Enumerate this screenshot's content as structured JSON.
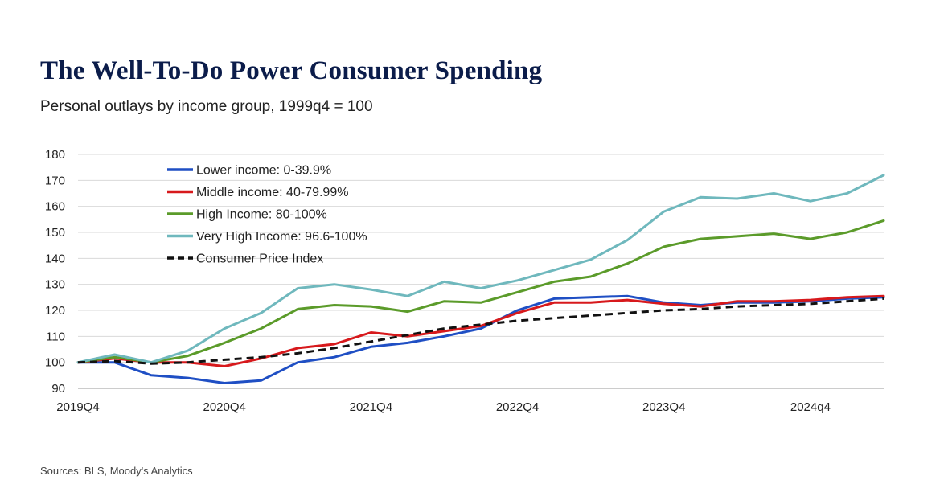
{
  "chart_data": {
    "type": "line",
    "title": "The Well-To-Do Power Consumer Spending",
    "subtitle": "Personal outlays by income group, 1999q4 = 100",
    "x_tick_labels": [
      "2019Q4",
      "2020Q4",
      "2021Q4",
      "2022Q4",
      "2023Q4",
      "2024q4"
    ],
    "x_tick_positions": [
      0,
      4,
      8,
      12,
      16,
      20
    ],
    "x": [
      0,
      1,
      2,
      3,
      4,
      5,
      6,
      7,
      8,
      9,
      10,
      11,
      12,
      13,
      14,
      15,
      16,
      17,
      18,
      19,
      20,
      21,
      22
    ],
    "ylim": [
      90,
      180
    ],
    "yticks": [
      90,
      100,
      110,
      120,
      130,
      140,
      150,
      160,
      170,
      180
    ],
    "grid": "horizontal",
    "legend_position": "top-left",
    "series": [
      {
        "name": "Lower income: 0-39.9%",
        "color": "#1f4fc4",
        "dash": "solid",
        "values": [
          100,
          100,
          95,
          94,
          92,
          93,
          100,
          102,
          106,
          107.5,
          110,
          113,
          120,
          124.5,
          125,
          125.5,
          123,
          122,
          123,
          123,
          123.5,
          124.5,
          125
        ]
      },
      {
        "name": "Middle income: 40-79.99%",
        "color": "#d7191c",
        "dash": "solid",
        "values": [
          100,
          101.5,
          100,
          100,
          98.5,
          101.5,
          105.5,
          107,
          111.5,
          110,
          112,
          114,
          119,
          123,
          123,
          124,
          122.5,
          121.5,
          123.5,
          123.5,
          124,
          125,
          125.5
        ]
      },
      {
        "name": "High Income: 80-100%",
        "color": "#5b9b2a",
        "dash": "solid",
        "values": [
          100,
          102,
          100,
          102.5,
          107.5,
          113,
          120.5,
          122,
          121.5,
          119.5,
          123.5,
          123,
          127,
          131,
          133,
          138,
          144.5,
          147.5,
          148.5,
          149.5,
          147.5,
          150,
          154.5
        ]
      },
      {
        "name": "Very High Income: 96.6-100%",
        "color": "#6fb8bd",
        "dash": "solid",
        "values": [
          100,
          103,
          100,
          104.5,
          113,
          119,
          128.5,
          130,
          128,
          125.5,
          131,
          128.5,
          131.5,
          135.5,
          139.5,
          147,
          158,
          163.5,
          163,
          165,
          162,
          165,
          172
        ]
      },
      {
        "name": "Consumer Price Index",
        "color": "#111111",
        "dash": "dashed",
        "values": [
          100,
          100.5,
          99.5,
          100,
          101,
          102,
          103.5,
          105.5,
          108,
          110.5,
          113,
          114.5,
          116,
          117,
          118,
          119,
          120,
          120.5,
          121.5,
          122,
          122.5,
          123.5,
          124.5
        ]
      }
    ]
  },
  "source": "Sources: BLS, Moody's Analytics"
}
